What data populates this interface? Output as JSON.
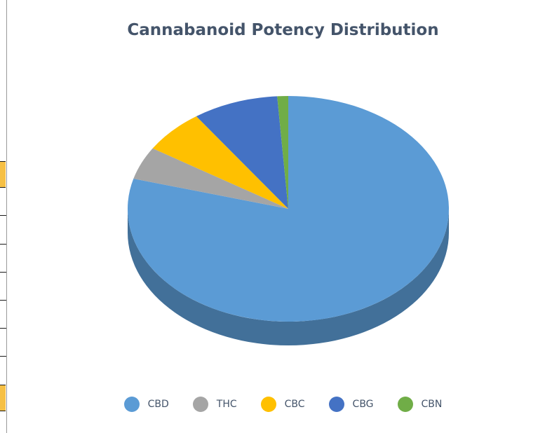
{
  "chart_data": {
    "type": "pie",
    "title": "Cannabanoid Potency Distribution",
    "categories": [
      "CBD",
      "THC",
      "CBC",
      "CBG",
      "CBN"
    ],
    "values": [
      79.3,
      4.7,
      6.3,
      8.6,
      1.1
    ],
    "colors": [
      "#5b9bd5",
      "#a5a5a5",
      "#ffc000",
      "#4472c4",
      "#70ad47"
    ],
    "style": "3d",
    "legend_position": "bottom"
  }
}
